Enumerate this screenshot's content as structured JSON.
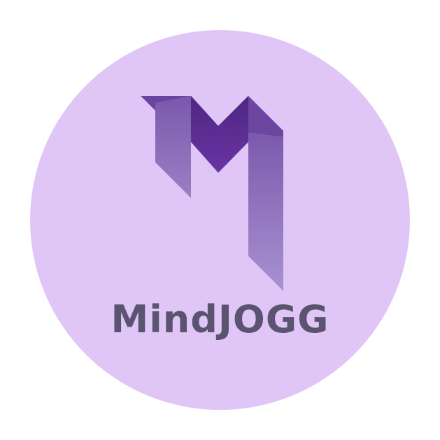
{
  "logo": {
    "name": "MindJOGG",
    "icon": "stylized-m-icon"
  },
  "colors": {
    "background": "#ffffff",
    "badge": "#dfc6f7",
    "text": "#5a5470",
    "mark_light": "#7f63b4",
    "mark_dark": "#5b2d90"
  }
}
